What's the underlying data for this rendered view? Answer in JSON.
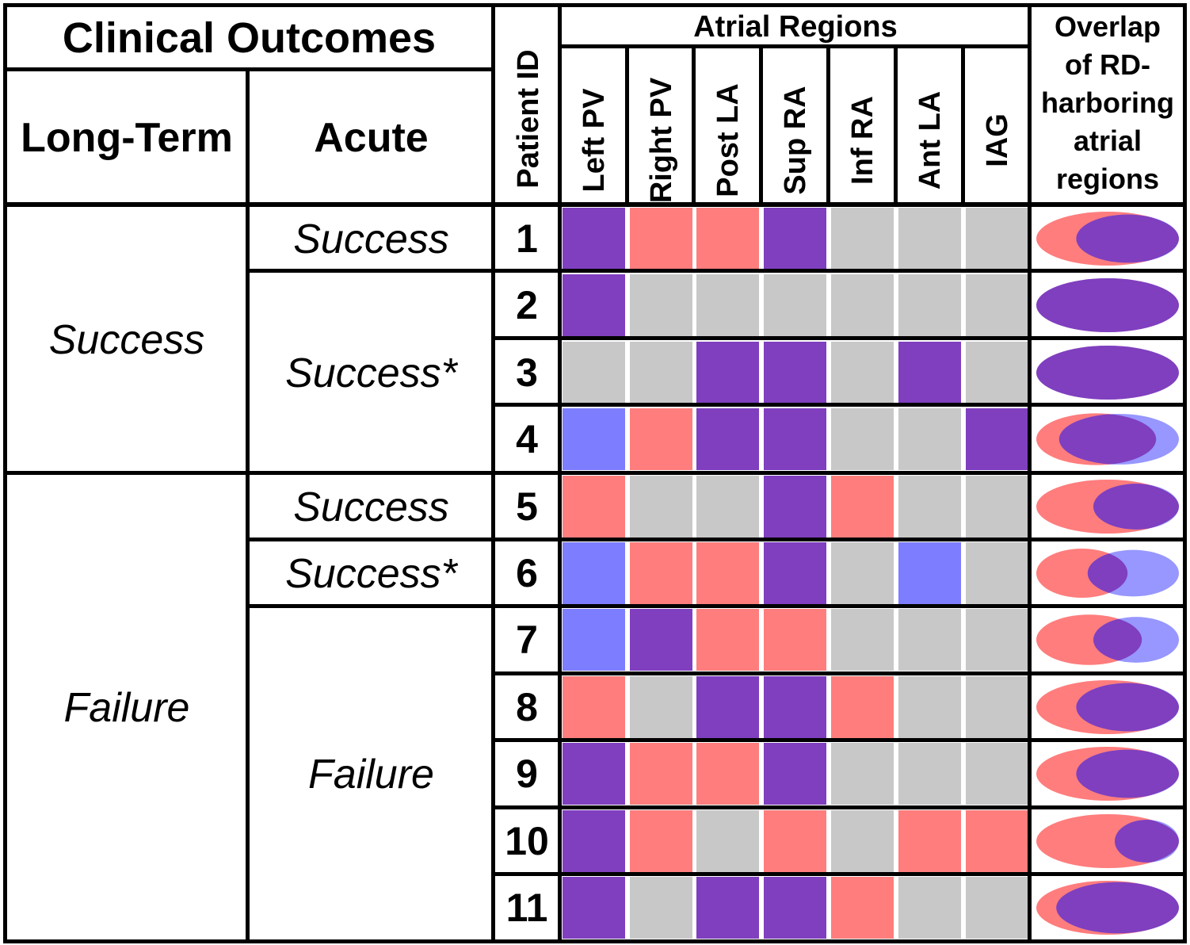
{
  "headers": {
    "clinical_outcomes": "Clinical Outcomes",
    "long_term": "Long-Term",
    "acute": "Acute",
    "patient_id": "Patient ID",
    "atrial_regions": "Atrial Regions",
    "overlap_lines": [
      "Overlap",
      "of RD-",
      "harboring",
      "atrial",
      "regions"
    ]
  },
  "regions": [
    "Left PV",
    "Right PV",
    "Post LA",
    "Sup RA",
    "Inf RA",
    "Ant LA",
    "IAG"
  ],
  "long_term_groups": [
    {
      "label": "Success",
      "patients": [
        1,
        2,
        3,
        4
      ]
    },
    {
      "label": "Failure",
      "patients": [
        5,
        6,
        7,
        8,
        9,
        10,
        11
      ]
    }
  ],
  "acute_groups": [
    {
      "label": "Success",
      "patients": [
        1
      ]
    },
    {
      "label": "Success*",
      "patients": [
        2,
        3,
        4
      ]
    },
    {
      "label": "Success",
      "patients": [
        5
      ]
    },
    {
      "label": "Success*",
      "patients": [
        6
      ]
    },
    {
      "label": "Failure",
      "patients": [
        7,
        8,
        9,
        10,
        11
      ]
    }
  ],
  "legend_colors": {
    "red": "#ff7d7d",
    "blue": "#7d7dff",
    "purple": "#7f3fbf",
    "gray": "#c8c8c8"
  },
  "patients": [
    {
      "id": "1",
      "cells": [
        "purple",
        "red",
        "red",
        "purple",
        "gray",
        "gray",
        "gray"
      ],
      "overlap": {
        "red": 1.0,
        "blue": 0.72,
        "red_left": true
      }
    },
    {
      "id": "2",
      "cells": [
        "purple",
        "gray",
        "gray",
        "gray",
        "gray",
        "gray",
        "gray"
      ],
      "overlap": {
        "red": 1.0,
        "blue": 1.0,
        "red_left": true
      }
    },
    {
      "id": "3",
      "cells": [
        "gray",
        "gray",
        "purple",
        "purple",
        "gray",
        "purple",
        "gray"
      ],
      "overlap": {
        "red": 1.0,
        "blue": 1.0,
        "red_left": true
      }
    },
    {
      "id": "4",
      "cells": [
        "blue",
        "red",
        "purple",
        "purple",
        "gray",
        "gray",
        "purple"
      ],
      "overlap": {
        "red": 0.84,
        "blue": 0.84,
        "red_left": true
      }
    },
    {
      "id": "5",
      "cells": [
        "red",
        "gray",
        "gray",
        "purple",
        "red",
        "gray",
        "gray"
      ],
      "overlap": {
        "red": 1.0,
        "blue": 0.6,
        "red_left": true
      }
    },
    {
      "id": "6",
      "cells": [
        "blue",
        "red",
        "red",
        "purple",
        "gray",
        "blue",
        "gray"
      ],
      "overlap": {
        "red": 0.64,
        "blue": 0.64,
        "red_left": true
      }
    },
    {
      "id": "7",
      "cells": [
        "blue",
        "purple",
        "red",
        "red",
        "gray",
        "gray",
        "gray"
      ],
      "overlap": {
        "red": 0.74,
        "blue": 0.6,
        "red_left": true
      }
    },
    {
      "id": "8",
      "cells": [
        "red",
        "gray",
        "purple",
        "purple",
        "red",
        "gray",
        "gray"
      ],
      "overlap": {
        "red": 1.0,
        "blue": 0.72,
        "red_left": true
      }
    },
    {
      "id": "9",
      "cells": [
        "purple",
        "red",
        "red",
        "purple",
        "gray",
        "gray",
        "gray"
      ],
      "overlap": {
        "red": 1.0,
        "blue": 0.72,
        "red_left": true
      }
    },
    {
      "id": "10",
      "cells": [
        "purple",
        "red",
        "gray",
        "red",
        "gray",
        "red",
        "red"
      ],
      "overlap": {
        "red": 1.0,
        "blue": 0.45,
        "red_left": true
      }
    },
    {
      "id": "11",
      "cells": [
        "purple",
        "gray",
        "purple",
        "purple",
        "red",
        "gray",
        "gray"
      ],
      "overlap": {
        "red": 1.0,
        "blue": 0.86,
        "red_left": true
      }
    }
  ]
}
